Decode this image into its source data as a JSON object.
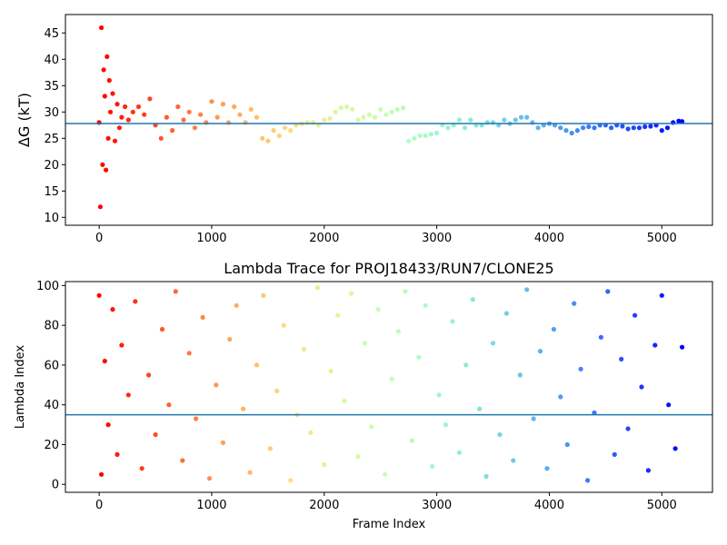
{
  "chart_data": [
    {
      "type": "scatter",
      "title": "",
      "xlabel": "",
      "ylabel": "ΔG (kT)",
      "xlim": [
        -300,
        5450
      ],
      "ylim": [
        8.5,
        48.5
      ],
      "xticks": [
        0,
        1000,
        2000,
        3000,
        4000,
        5000
      ],
      "yticks": [
        10,
        15,
        20,
        25,
        30,
        35,
        40,
        45
      ],
      "hline": 27.8,
      "hline_color": "#1f77b4",
      "colormap": "rainbow (red at frame 0 → purple at final frame)",
      "grid": false,
      "legend": "none",
      "series": [
        {
          "x": [
            0,
            10,
            20,
            30,
            40,
            50,
            60,
            70,
            80,
            90,
            100,
            120,
            140,
            160,
            180,
            200,
            230,
            260,
            300,
            350,
            400,
            450,
            500,
            550,
            600,
            650,
            700,
            750,
            800,
            850,
            900,
            950,
            1000,
            1050,
            1100,
            1150,
            1200,
            1250,
            1300,
            1350,
            1400,
            1450,
            1500,
            1550,
            1600,
            1650,
            1700,
            1750,
            1800,
            1850,
            1900,
            1950,
            2000,
            2050,
            2100,
            2150,
            2200,
            2250,
            2300,
            2350,
            2400,
            2450,
            2500,
            2550,
            2600,
            2650,
            2700,
            2750,
            2800,
            2850,
            2900,
            2950,
            3000,
            3050,
            3100,
            3150,
            3200,
            3250,
            3300,
            3350,
            3400,
            3450,
            3500,
            3550,
            3600,
            3650,
            3700,
            3750,
            3800,
            3850,
            3900,
            3950,
            4000,
            4050,
            4100,
            4150,
            4200,
            4250,
            4300,
            4350,
            4400,
            4450,
            4500,
            4550,
            4600,
            4650,
            4700,
            4750,
            4800,
            4850,
            4900,
            4950,
            5000,
            5050,
            5100,
            5150,
            5180
          ],
          "y": [
            28.0,
            12.0,
            46.0,
            20.0,
            38.0,
            33.0,
            19.0,
            40.5,
            25.0,
            36.0,
            30.0,
            33.5,
            24.5,
            31.5,
            27.0,
            29.0,
            31.0,
            28.5,
            30.0,
            31.0,
            29.5,
            32.5,
            27.5,
            25.0,
            29.0,
            26.5,
            31.0,
            28.5,
            30.0,
            27.0,
            29.5,
            28.0,
            32.0,
            29.0,
            31.5,
            28.0,
            31.0,
            29.5,
            28.0,
            30.5,
            29.0,
            25.0,
            24.5,
            26.5,
            25.5,
            27.0,
            26.5,
            27.5,
            27.8,
            28.0,
            28.0,
            27.5,
            28.5,
            28.8,
            30.0,
            30.8,
            31.0,
            30.5,
            28.5,
            29.0,
            29.5,
            29.0,
            30.5,
            29.5,
            30.0,
            30.5,
            30.8,
            24.5,
            25.0,
            25.5,
            25.5,
            25.8,
            26.0,
            27.5,
            27.0,
            27.5,
            28.5,
            27.0,
            28.5,
            27.5,
            27.5,
            28.0,
            28.0,
            27.5,
            28.5,
            27.8,
            28.5,
            29.0,
            29.0,
            28.0,
            27.0,
            27.5,
            27.8,
            27.5,
            27.0,
            26.5,
            26.0,
            26.5,
            27.0,
            27.2,
            27.0,
            27.5,
            27.5,
            27.0,
            27.5,
            27.3,
            26.8,
            27.0,
            27.0,
            27.2,
            27.3,
            27.5,
            26.5,
            27.0,
            28.0,
            28.3,
            28.2
          ]
        }
      ]
    },
    {
      "type": "scatter",
      "title": "Lambda Trace for PROJ18433/RUN7/CLONE25",
      "xlabel": "Frame Index",
      "ylabel": "Lambda Index",
      "xlim": [
        -300,
        5450
      ],
      "ylim": [
        -4,
        102
      ],
      "xticks": [
        0,
        1000,
        2000,
        3000,
        4000,
        5000
      ],
      "yticks": [
        0,
        20,
        40,
        60,
        80,
        100
      ],
      "hline": 35,
      "hline_color": "#1f77b4",
      "colormap": "rainbow (red at frame 0 → purple at final frame)",
      "grid": false,
      "legend": "none",
      "series": [
        {
          "x": [
            0,
            20,
            50,
            80,
            120,
            160,
            200,
            260,
            320,
            380,
            440,
            500,
            560,
            620,
            680,
            740,
            800,
            860,
            920,
            980,
            1040,
            1100,
            1160,
            1220,
            1280,
            1340,
            1400,
            1460,
            1520,
            1580,
            1640,
            1700,
            1760,
            1820,
            1880,
            1940,
            2000,
            2060,
            2120,
            2180,
            2240,
            2300,
            2360,
            2420,
            2480,
            2540,
            2600,
            2660,
            2720,
            2780,
            2840,
            2900,
            2960,
            3020,
            3080,
            3140,
            3200,
            3260,
            3320,
            3380,
            3440,
            3500,
            3560,
            3620,
            3680,
            3740,
            3800,
            3860,
            3920,
            3980,
            4040,
            4100,
            4160,
            4220,
            4280,
            4340,
            4400,
            4460,
            4520,
            4580,
            4640,
            4700,
            4760,
            4820,
            4880,
            4940,
            5000,
            5060,
            5120,
            5180
          ],
          "y": [
            95,
            5,
            62,
            30,
            88,
            15,
            70,
            45,
            92,
            8,
            55,
            25,
            78,
            40,
            97,
            12,
            66,
            33,
            84,
            3,
            50,
            21,
            73,
            90,
            38,
            6,
            60,
            95,
            18,
            47,
            80,
            2,
            35,
            68,
            26,
            99,
            10,
            57,
            85,
            42,
            96,
            14,
            71,
            29,
            88,
            5,
            53,
            77,
            97,
            22,
            64,
            90,
            9,
            45,
            30,
            82,
            16,
            60,
            93,
            38,
            4,
            71,
            25,
            86,
            12,
            55,
            98,
            33,
            67,
            8,
            78,
            44,
            20,
            91,
            58,
            2,
            36,
            74,
            97,
            15,
            63,
            28,
            85,
            49,
            7,
            70,
            95,
            40,
            18,
            69
          ]
        }
      ]
    }
  ]
}
